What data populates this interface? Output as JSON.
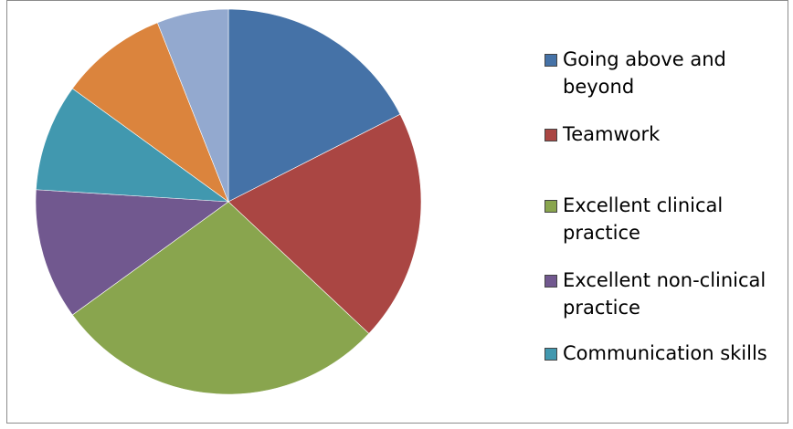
{
  "chart_data": {
    "type": "pie",
    "title": "",
    "slices": [
      {
        "label": "Going above and beyond",
        "value": 17.5,
        "color": "#4572A7"
      },
      {
        "label": "Teamwork",
        "value": 19.5,
        "color": "#AA4643"
      },
      {
        "label": "Excellent clinical practice",
        "value": 28.0,
        "color": "#89A54E"
      },
      {
        "label": "Excellent non-clinical practice",
        "value": 11.0,
        "color": "#71588F"
      },
      {
        "label": "Communication skills",
        "value": 9.0,
        "color": "#4198AF"
      },
      {
        "label": "",
        "value": 9.0,
        "color": "#DB843D"
      },
      {
        "label": "",
        "value": 6.0,
        "color": "#93A9CF"
      }
    ],
    "legend": {
      "placement": "right",
      "entries": [
        "Going above and beyond",
        "Teamwork",
        "Excellent clinical practice",
        "Excellent non-clinical practice",
        "Communication skills"
      ]
    }
  }
}
